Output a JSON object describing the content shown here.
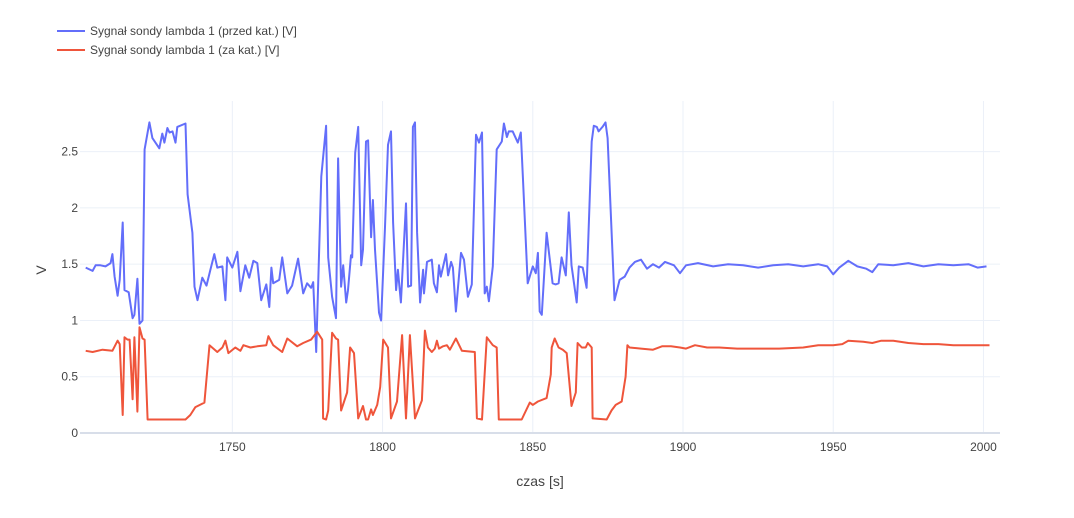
{
  "chart_data": {
    "type": "line",
    "title": "",
    "xlabel": "czas [s]",
    "ylabel": "V",
    "xlim": [
      1699.3,
      2005.5
    ],
    "ylim": [
      0,
      2.95
    ],
    "xticks": [
      1750,
      1800,
      1850,
      1900,
      1950,
      2000
    ],
    "xtick_labels": [
      "1750",
      "1800",
      "1850",
      "1900",
      "1950",
      "2000"
    ],
    "yticks": [
      0,
      0.5,
      1,
      1.5,
      2,
      2.5
    ],
    "ytick_labels": [
      "0",
      "0.5",
      "1",
      "1.5",
      "2",
      "2.5"
    ],
    "grid": true,
    "legend_position": "top-left",
    "series": [
      {
        "name": "Sygnał sondy lambda 1 (przed kat.) [V]",
        "color": "#636efa",
        "x": [
          1701.2,
          1703.5,
          1704.5,
          1706.1,
          1707.8,
          1709.5,
          1710.1,
          1710.8,
          1711.8,
          1712.5,
          1713.5,
          1714.1,
          1715.5,
          1716.8,
          1717.4,
          1718.4,
          1719.1,
          1720.1,
          1720.8,
          1722.4,
          1723.4,
          1725.7,
          1726.7,
          1727.4,
          1728.4,
          1729.1,
          1730.1,
          1731.1,
          1731.7,
          1734.4,
          1735.1,
          1736.7,
          1737.4,
          1738.4,
          1740.0,
          1741.4,
          1742.7,
          1744.0,
          1745.0,
          1746.7,
          1747.7,
          1748.3,
          1750.0,
          1751.7,
          1752.7,
          1754.3,
          1755.6,
          1757.0,
          1758.3,
          1759.6,
          1761.3,
          1762.3,
          1763.0,
          1763.6,
          1765.6,
          1766.6,
          1768.3,
          1769.9,
          1771.9,
          1773.6,
          1774.9,
          1776.2,
          1776.9,
          1777.9,
          1779.6,
          1781.2,
          1781.9,
          1783.2,
          1784.5,
          1785.2,
          1786.2,
          1786.9,
          1787.9,
          1788.5,
          1789.5,
          1789.9,
          1790.9,
          1791.9,
          1792.9,
          1793.5,
          1794.5,
          1795.2,
          1796.2,
          1796.8,
          1797.5,
          1798.8,
          1799.5,
          1800.8,
          1801.8,
          1802.8,
          1803.5,
          1804.5,
          1805.1,
          1806.1,
          1807.8,
          1808.5,
          1809.5,
          1810.1,
          1810.8,
          1811.5,
          1812.5,
          1813.5,
          1813.8,
          1814.8,
          1816.4,
          1817.1,
          1818.1,
          1818.8,
          1819.4,
          1821.1,
          1821.8,
          1822.8,
          1823.4,
          1824.4,
          1826.1,
          1827.1,
          1828.4,
          1829.7,
          1831.1,
          1832.1,
          1833.1,
          1834.0,
          1834.7,
          1835.4,
          1836.7,
          1838.0,
          1839.7,
          1840.4,
          1841.4,
          1842.0,
          1843.3,
          1845.0,
          1846.0,
          1846.7,
          1848.3,
          1850.0,
          1851.0,
          1851.7,
          1852.3,
          1853.0,
          1854.6,
          1856.6,
          1857.6,
          1858.6,
          1859.6,
          1861.0,
          1862.0,
          1862.9,
          1864.6,
          1865.3,
          1866.6,
          1867.9,
          1869.6,
          1870.3,
          1871.3,
          1871.9,
          1873.2,
          1874.2,
          1874.9,
          1877.2,
          1878.9,
          1880.6,
          1882.2,
          1884,
          1886,
          1888,
          1890,
          1892,
          1894,
          1897,
          1899,
          1901,
          1905,
          1910,
          1915,
          1920,
          1925,
          1930,
          1935,
          1940,
          1945,
          1948,
          1950,
          1952,
          1955,
          1958,
          1961,
          1963,
          1965,
          1970,
          1975,
          1980,
          1985,
          1990,
          1995,
          1998,
          2001
        ],
        "y": [
          1.47,
          1.44,
          1.49,
          1.49,
          1.48,
          1.51,
          1.59,
          1.39,
          1.22,
          1.36,
          1.87,
          1.27,
          1.25,
          1.02,
          1.05,
          1.37,
          0.97,
          1.0,
          2.52,
          2.76,
          2.62,
          2.53,
          2.66,
          2.58,
          2.71,
          2.67,
          2.68,
          2.58,
          2.72,
          2.75,
          2.12,
          1.78,
          1.3,
          1.18,
          1.38,
          1.31,
          1.45,
          1.59,
          1.47,
          1.48,
          1.18,
          1.56,
          1.47,
          1.61,
          1.26,
          1.49,
          1.38,
          1.53,
          1.51,
          1.18,
          1.32,
          1.12,
          1.47,
          1.33,
          1.36,
          1.56,
          1.24,
          1.31,
          1.55,
          1.24,
          1.33,
          1.29,
          1.34,
          0.72,
          2.28,
          2.73,
          1.56,
          1.21,
          1.02,
          2.44,
          1.3,
          1.49,
          1.16,
          1.27,
          1.58,
          1.56,
          2.49,
          2.72,
          1.49,
          1.63,
          2.59,
          2.6,
          1.74,
          2.07,
          1.63,
          1.07,
          1.0,
          1.83,
          2.56,
          2.68,
          1.87,
          1.27,
          1.45,
          1.16,
          2.04,
          1.3,
          1.31,
          2.72,
          2.76,
          1.78,
          1.16,
          1.45,
          1.24,
          1.52,
          1.54,
          1.33,
          1.25,
          1.49,
          1.39,
          1.59,
          1.4,
          1.52,
          1.47,
          1.08,
          1.6,
          1.54,
          1.21,
          1.32,
          2.65,
          2.58,
          2.67,
          1.24,
          1.3,
          1.17,
          1.48,
          2.52,
          2.59,
          2.75,
          2.63,
          2.68,
          2.68,
          2.58,
          2.67,
          2.27,
          1.33,
          1.48,
          1.42,
          1.6,
          1.08,
          1.05,
          1.78,
          1.33,
          1.32,
          1.33,
          1.56,
          1.4,
          1.96,
          1.49,
          1.16,
          1.48,
          1.47,
          1.29,
          2.59,
          2.73,
          2.72,
          2.68,
          2.72,
          2.76,
          2.62,
          1.18,
          1.36,
          1.39,
          1.47,
          1.52,
          1.54,
          1.46,
          1.5,
          1.47,
          1.52,
          1.49,
          1.42,
          1.49,
          1.51,
          1.48,
          1.5,
          1.49,
          1.47,
          1.49,
          1.5,
          1.48,
          1.5,
          1.48,
          1.41,
          1.47,
          1.53,
          1.48,
          1.46,
          1.43,
          1.5,
          1.49,
          1.51,
          1.48,
          1.5,
          1.49,
          1.5,
          1.47,
          1.48
        ]
      },
      {
        "name": "Sygnał sondy lambda 1 (za kat.) [V]",
        "color": "#ef553b",
        "x": [
          1701.2,
          1703.5,
          1706.8,
          1710.1,
          1711.8,
          1712.5,
          1713.5,
          1714.1,
          1715.1,
          1715.8,
          1716.8,
          1717.4,
          1718.4,
          1719.1,
          1720.1,
          1720.8,
          1721.8,
          1723.4,
          1734.4,
          1736.0,
          1737.7,
          1740.7,
          1742.4,
          1745.0,
          1746.7,
          1747.7,
          1748.7,
          1751.0,
          1752.7,
          1753.7,
          1756.0,
          1758.3,
          1761.3,
          1762.0,
          1763.6,
          1766.6,
          1768.3,
          1771.6,
          1773.6,
          1776.2,
          1778.2,
          1779.9,
          1780.2,
          1781.2,
          1781.9,
          1783.2,
          1784.5,
          1785.2,
          1786.2,
          1788.2,
          1789.2,
          1790.5,
          1791.9,
          1793.5,
          1794.5,
          1795.2,
          1796.2,
          1796.8,
          1798.2,
          1799.2,
          1800.2,
          1801.8,
          1802.8,
          1804.8,
          1806.5,
          1807.8,
          1809.1,
          1810.8,
          1813.1,
          1814.1,
          1815.1,
          1816.4,
          1817.4,
          1818.1,
          1818.8,
          1820.1,
          1821.4,
          1822.4,
          1824.4,
          1826.4,
          1830.7,
          1831.4,
          1833.1,
          1834.7,
          1836.7,
          1838.0,
          1838.7,
          1846.3,
          1849.0,
          1850.0,
          1851.7,
          1854.6,
          1856.0,
          1856.3,
          1857.3,
          1858.6,
          1860.0,
          1861.3,
          1862.9,
          1864.3,
          1864.9,
          1866.3,
          1867.6,
          1868.3,
          1869.6,
          1869.9,
          1874.6,
          1876.2,
          1877.6,
          1879.6,
          1880.9,
          1881.5,
          1882.2,
          1886,
          1890,
          1893,
          1896,
          1899,
          1901,
          1904,
          1908,
          1912,
          1918,
          1925,
          1932,
          1940,
          1945,
          1950,
          1953,
          1955,
          1960,
          1963,
          1966,
          1970,
          1975,
          1980,
          1985,
          1990,
          1995,
          2002
        ],
        "y": [
          0.73,
          0.72,
          0.74,
          0.73,
          0.82,
          0.79,
          0.16,
          0.85,
          0.83,
          0.83,
          0.3,
          0.85,
          0.19,
          0.94,
          0.84,
          0.83,
          0.12,
          0.12,
          0.12,
          0.16,
          0.23,
          0.27,
          0.78,
          0.72,
          0.76,
          0.82,
          0.71,
          0.76,
          0.73,
          0.78,
          0.76,
          0.77,
          0.78,
          0.86,
          0.78,
          0.72,
          0.84,
          0.77,
          0.8,
          0.83,
          0.9,
          0.83,
          0.13,
          0.12,
          0.2,
          0.89,
          0.84,
          0.83,
          0.2,
          0.36,
          0.76,
          0.71,
          0.13,
          0.24,
          0.12,
          0.12,
          0.21,
          0.16,
          0.25,
          0.41,
          0.83,
          0.76,
          0.13,
          0.28,
          0.87,
          0.13,
          0.87,
          0.13,
          0.29,
          0.91,
          0.76,
          0.72,
          0.75,
          0.82,
          0.75,
          0.77,
          0.78,
          0.74,
          0.84,
          0.73,
          0.72,
          0.13,
          0.12,
          0.85,
          0.78,
          0.76,
          0.12,
          0.12,
          0.27,
          0.25,
          0.28,
          0.31,
          0.52,
          0.76,
          0.84,
          0.76,
          0.74,
          0.71,
          0.24,
          0.36,
          0.8,
          0.76,
          0.76,
          0.8,
          0.76,
          0.13,
          0.12,
          0.2,
          0.25,
          0.28,
          0.5,
          0.78,
          0.76,
          0.75,
          0.74,
          0.77,
          0.77,
          0.76,
          0.75,
          0.78,
          0.76,
          0.76,
          0.75,
          0.75,
          0.75,
          0.76,
          0.78,
          0.78,
          0.79,
          0.82,
          0.81,
          0.8,
          0.82,
          0.82,
          0.8,
          0.79,
          0.79,
          0.78,
          0.78,
          0.78
        ]
      }
    ]
  }
}
